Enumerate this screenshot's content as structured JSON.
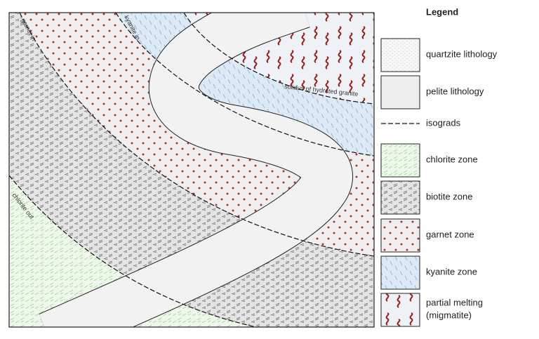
{
  "legend": {
    "title": "Legend",
    "items": [
      {
        "label": "quartzite lithology"
      },
      {
        "label": "pelite lithology"
      },
      {
        "label": "isograds"
      },
      {
        "label": "chlorite zone"
      },
      {
        "label": "biotite zone"
      },
      {
        "label": "garnet zone"
      },
      {
        "label": "kyanite zone"
      },
      {
        "label_lines": [
          "partial melting",
          "(migmatite)"
        ]
      }
    ]
  },
  "map_labels": {
    "garnet_in": "garnet in",
    "kyanite_in": "kyanite in",
    "chlorite_out": "chlorite out",
    "solidus": "solidus of hydrated granite"
  }
}
